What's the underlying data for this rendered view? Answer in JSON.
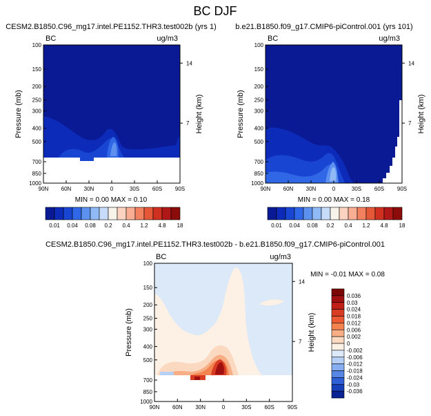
{
  "figure_title": "BC DJF",
  "chart_data": [
    {
      "type": "heatmap",
      "title": "CESM2.B1850.C96_mg17.intel.PE1152.THR3.test002b (yrs 1)",
      "left_label": "BC",
      "right_label": "ug/m3",
      "xlabel": "",
      "ylabel": "Pressure (mb)",
      "ylabel_right": "Height (km)",
      "x_ticks": [
        "90N",
        "60N",
        "30N",
        "0",
        "30S",
        "60S",
        "90S"
      ],
      "y_ticks": [
        "100",
        "150",
        "200",
        "250",
        "300",
        "400",
        "500",
        "700",
        "850",
        "1000"
      ],
      "height_ticks": [
        "14",
        "7"
      ],
      "ylim": [
        1000,
        100
      ],
      "xlim": [
        90,
        -90
      ],
      "min_max_text": "MIN =  0.00   MAX =  0.10",
      "min": 0.0,
      "max": 0.1
    },
    {
      "type": "heatmap",
      "title": "b.e21.B1850.f09_g17.CMIP6-piControl.001 (yrs 101)",
      "left_label": "BC",
      "right_label": "ug/m3",
      "xlabel": "",
      "ylabel": "Pressure (mb)",
      "ylabel_right": "Height (km)",
      "x_ticks": [
        "90N",
        "60N",
        "30N",
        "0",
        "30S",
        "60S",
        "90S"
      ],
      "y_ticks": [
        "100",
        "150",
        "200",
        "250",
        "300",
        "400",
        "500",
        "700",
        "850",
        "1000"
      ],
      "height_ticks": [
        "14",
        "7"
      ],
      "ylim": [
        1000,
        100
      ],
      "xlim": [
        90,
        -90
      ],
      "min_max_text": "MIN =  0.00   MAX =  0.18",
      "min": 0.0,
      "max": 0.18
    },
    {
      "type": "heatmap",
      "title": "CESM2.B1850.C96_mg17.intel.PE1152.THR3.test002b - b.e21.B1850.f09_g17.CMIP6-piControl.001",
      "left_label": "BC",
      "right_label": "ug/m3",
      "xlabel": "",
      "ylabel": "Pressure (mb)",
      "ylabel_right": "Height (km)",
      "x_ticks": [
        "90N",
        "60N",
        "30N",
        "0",
        "30S",
        "60S",
        "90S"
      ],
      "y_ticks": [
        "100",
        "150",
        "200",
        "250",
        "300",
        "400",
        "500",
        "700",
        "850",
        "1000"
      ],
      "height_ticks": [
        "14",
        "7"
      ],
      "ylim": [
        1000,
        100
      ],
      "xlim": [
        90,
        -90
      ],
      "min_max_text": "MIN = -0.01   MAX =  0.08",
      "min": -0.01,
      "max": 0.08
    }
  ],
  "shared_colorbar": {
    "labels": [
      "0.01",
      "0.04",
      "0.08",
      "0.2",
      "0.4",
      "1.2",
      "4.8",
      "18"
    ],
    "colors": [
      "#0a1a94",
      "#0c2bb8",
      "#1846d2",
      "#2f67e6",
      "#5c91f0",
      "#8fbaf6",
      "#c7dcfb",
      "#f7f2ea",
      "#fbd3c0",
      "#f9ad92",
      "#f3805f",
      "#e45838",
      "#cf3020",
      "#b01818",
      "#8c0b0b"
    ]
  },
  "diff_colorbar": {
    "labels": [
      "0.036",
      "0.03",
      "0.024",
      "0.018",
      "0.012",
      "0.006",
      "0.002",
      "0",
      "-0.002",
      "-0.006",
      "-0.012",
      "-0.018",
      "-0.024",
      "-0.03",
      "-0.036"
    ],
    "colors": [
      "#7a0606",
      "#a01010",
      "#c02018",
      "#d83c22",
      "#ec5a33",
      "#f4844f",
      "#f8ae85",
      "#fbd8c0",
      "#fdf0e4",
      "#dce9f8",
      "#b6d0f5",
      "#86aef0",
      "#5687e6",
      "#2f5fd6",
      "#173fba",
      "#0a2494"
    ]
  }
}
